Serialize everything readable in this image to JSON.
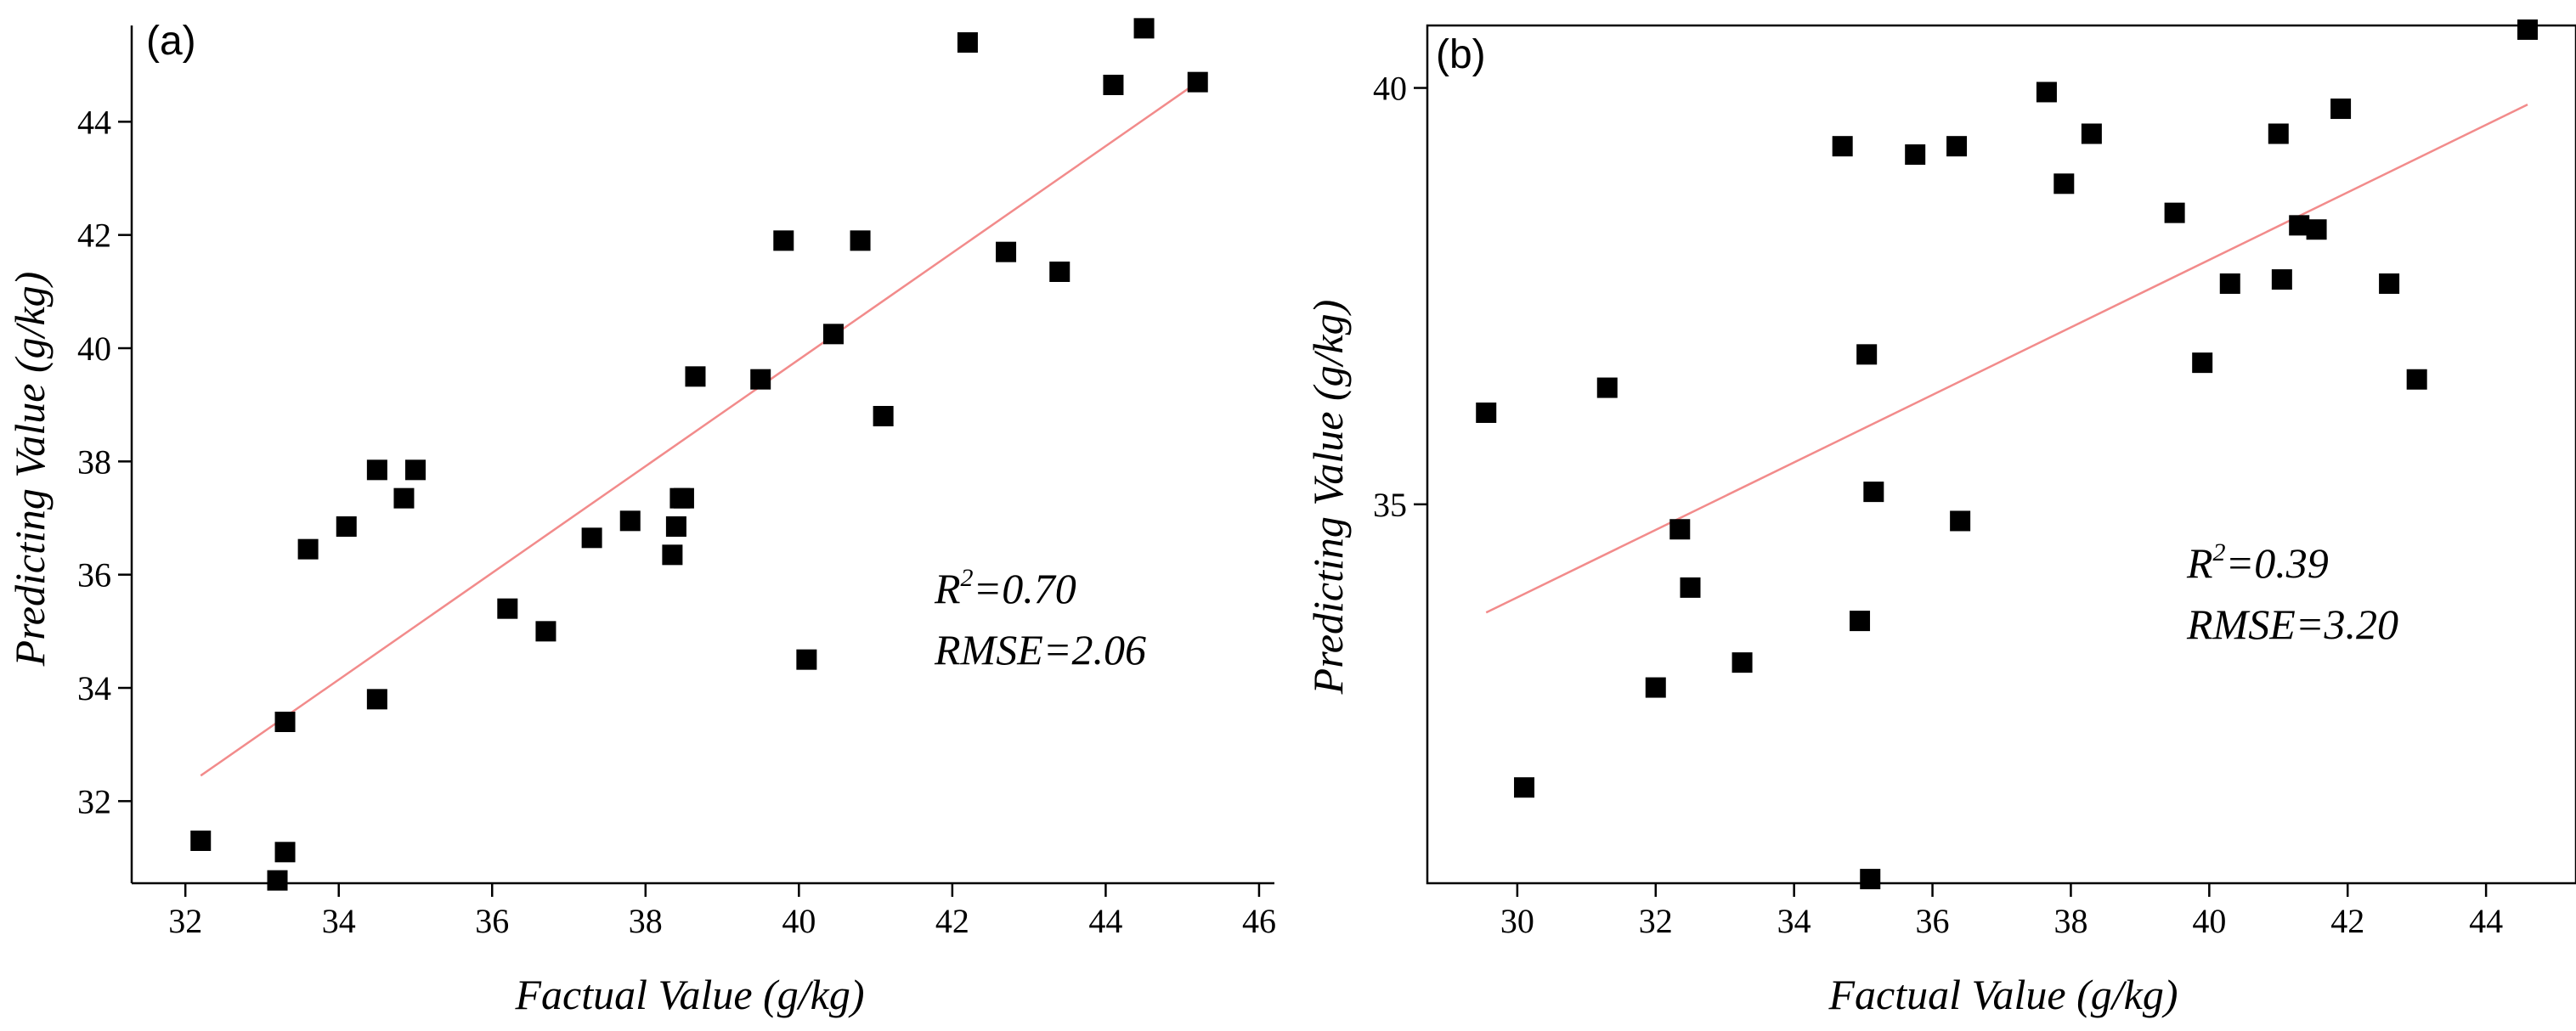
{
  "chart_data": [
    {
      "type": "scatter",
      "panel_label": "(a)",
      "xlabel": "Factual Value (g/kg)",
      "ylabel": "Predicting Value (g/kg)",
      "xlim": [
        31.3,
        46.2
      ],
      "ylim": [
        30.55,
        45.7
      ],
      "xticks": [
        32,
        34,
        36,
        38,
        40,
        42,
        44,
        46
      ],
      "yticks": [
        32,
        34,
        36,
        38,
        40,
        42,
        44
      ],
      "x": [
        32.2,
        33.2,
        33.3,
        33.3,
        33.6,
        34.1,
        34.5,
        34.5,
        34.85,
        35.0,
        36.2,
        36.7,
        37.3,
        37.8,
        38.35,
        38.4,
        38.45,
        38.5,
        38.65,
        39.5,
        39.8,
        40.1,
        40.45,
        40.8,
        41.1,
        42.2,
        42.7,
        43.4,
        44.1,
        44.5,
        45.2
      ],
      "y": [
        31.3,
        30.6,
        31.1,
        33.4,
        36.45,
        36.85,
        37.85,
        33.8,
        37.35,
        37.85,
        35.4,
        35.0,
        36.65,
        36.95,
        36.35,
        36.85,
        37.35,
        37.35,
        39.5,
        39.45,
        41.9,
        34.5,
        40.25,
        41.9,
        38.8,
        45.4,
        41.7,
        41.35,
        44.65,
        45.65,
        44.7
      ],
      "fit_line": {
        "x": [
          32.2,
          45.2
        ],
        "y": [
          32.45,
          44.7
        ]
      },
      "fit_color": "#f28b8b",
      "marker_color": "#000000",
      "stats": {
        "r2_prefix": "R",
        "r2_sup": "2",
        "r2_value": "=0.70",
        "rmse": "RMSE=2.06"
      }
    },
    {
      "type": "scatter",
      "panel_label": "(b)",
      "xlabel": "Factual Value (g/kg)",
      "ylabel": "Predicting Value (g/kg)",
      "xlim": [
        28.7,
        45.3
      ],
      "ylim": [
        30.45,
        40.75
      ],
      "xticks": [
        30,
        32,
        34,
        36,
        38,
        40,
        42,
        44
      ],
      "yticks": [
        35,
        40
      ],
      "x": [
        29.55,
        30.1,
        31.3,
        32.0,
        32.35,
        32.5,
        33.25,
        34.7,
        34.95,
        35.05,
        35.1,
        35.15,
        35.75,
        36.35,
        36.4,
        37.65,
        37.9,
        38.3,
        39.5,
        39.9,
        40.3,
        41.0,
        41.05,
        41.3,
        41.55,
        41.9,
        42.6,
        43.0,
        44.6
      ],
      "y": [
        36.1,
        31.6,
        36.4,
        32.8,
        34.7,
        34.0,
        33.1,
        39.3,
        33.6,
        36.8,
        30.5,
        35.15,
        39.2,
        39.3,
        34.8,
        39.95,
        38.85,
        39.45,
        38.5,
        36.7,
        37.65,
        39.45,
        37.7,
        38.35,
        38.3,
        39.75,
        37.65,
        36.5,
        40.7
      ],
      "fit_line": {
        "x": [
          29.55,
          44.6
        ],
        "y": [
          33.7,
          39.8
        ]
      },
      "fit_color": "#f28b8b",
      "marker_color": "#000000",
      "stats": {
        "r2_prefix": "R",
        "r2_sup": "2",
        "r2_value": "=0.39",
        "rmse": "RMSE=3.20"
      }
    }
  ]
}
